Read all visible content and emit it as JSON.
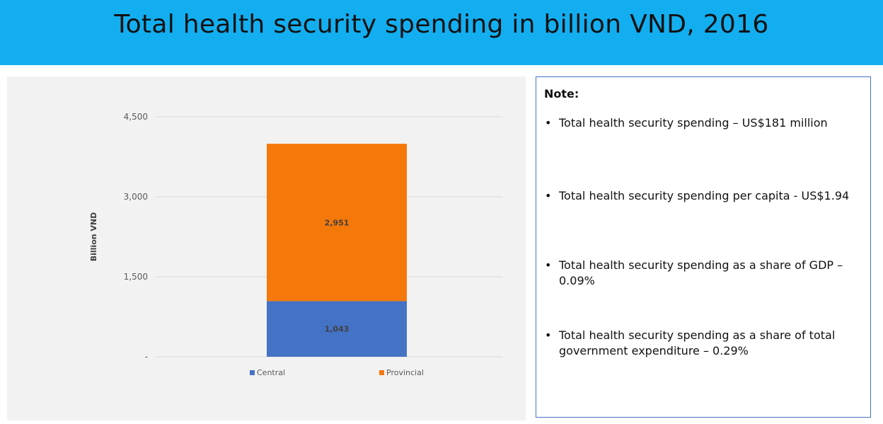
{
  "header": {
    "title": "Total health security spending in billion VND, 2016",
    "background_color": "#13aef0"
  },
  "chart_data": {
    "type": "bar",
    "stacked": true,
    "categories": [
      ""
    ],
    "series": [
      {
        "name": "Central",
        "values": [
          1043
        ],
        "color": "#4472c4",
        "data_labels": [
          "1,043"
        ]
      },
      {
        "name": "Provincial",
        "values": [
          2951
        ],
        "color": "#f5780a",
        "data_labels": [
          "2,951"
        ]
      }
    ],
    "title": "",
    "xlabel": "",
    "ylabel": "Billion VND",
    "ylim": [
      0,
      4500
    ],
    "yticks": [
      0,
      1500,
      3000,
      4500
    ],
    "ytick_labels": [
      "-",
      "1,500",
      "3,000",
      "4,500"
    ],
    "grid": true,
    "legend": "bottom"
  },
  "note": {
    "title": "Note:",
    "items": [
      "Total health security spending – US$181 million",
      "Total health security spending per capita  - US$1.94",
      "Total health security spending as a share of GDP – 0.09%",
      "Total health security spending as a share of total government expenditure – 0.29%"
    ],
    "border_color": "#4472c4"
  }
}
